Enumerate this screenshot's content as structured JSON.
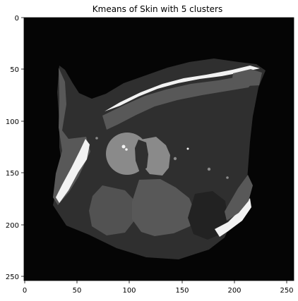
{
  "figure": {
    "title": "Kmeans of Skin with 5 clusters"
  },
  "axes": {
    "x_ticks": [
      "0",
      "50",
      "100",
      "150",
      "200",
      "250"
    ],
    "y_ticks": [
      "0",
      "50",
      "100",
      "150",
      "200",
      "250"
    ],
    "xlim": [
      0,
      256
    ],
    "ylim": [
      256,
      0
    ]
  },
  "image": {
    "colormap": "gray",
    "cluster_count": 5,
    "cluster_levels": [
      "#050505",
      "#2f2f2f",
      "#585858",
      "#8a8a8a",
      "#f2f2f2"
    ]
  }
}
